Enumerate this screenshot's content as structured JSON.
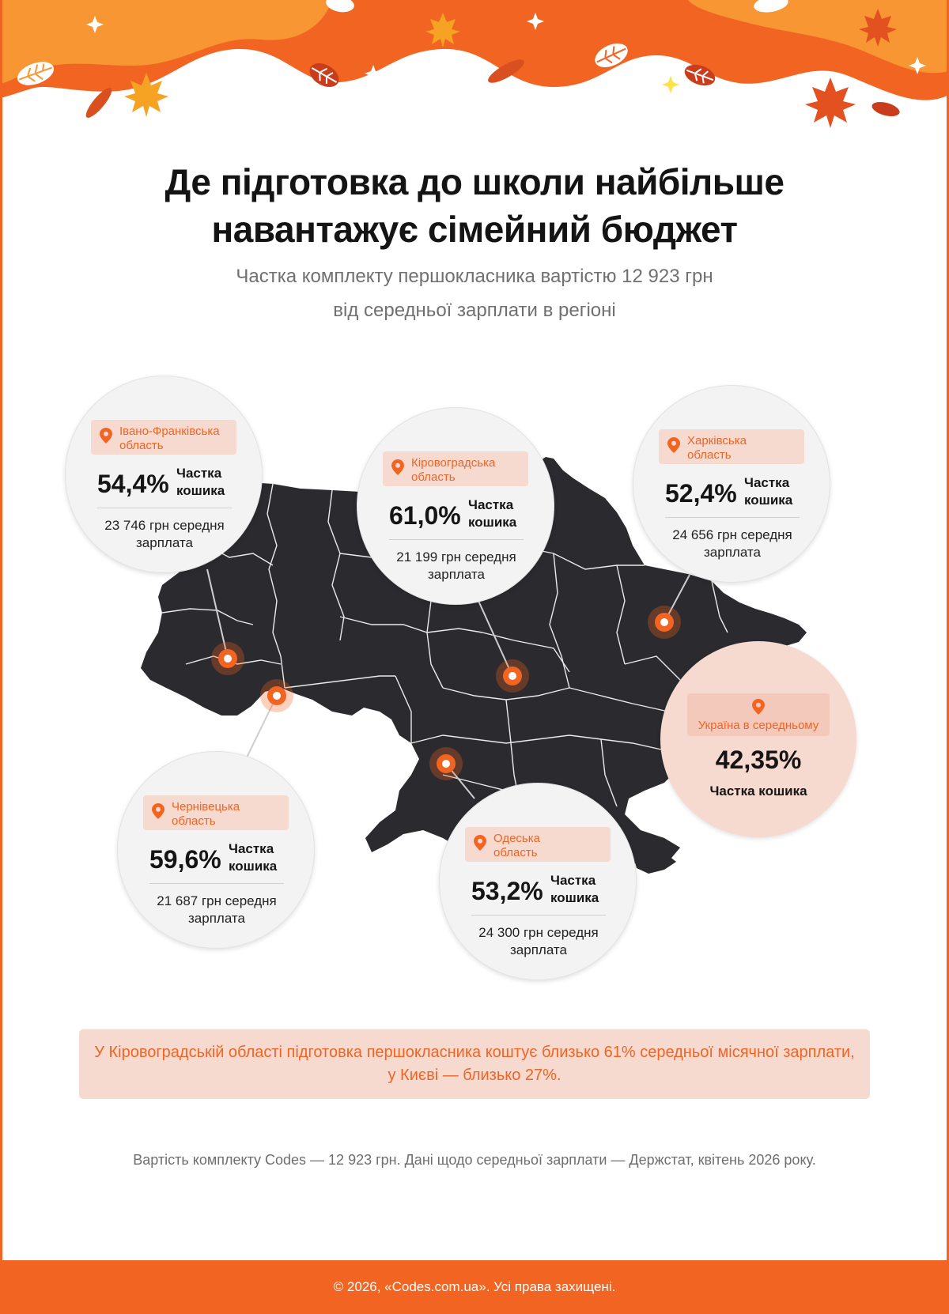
{
  "title": {
    "line1": "Де підготовка до школи найбільше",
    "line2": "навантажує сімейний бюджет"
  },
  "subtitle": {
    "line1": "Частка комплекту першокласника вартістю 12 923 грн",
    "line2": "від середньої зарплати в регіоні"
  },
  "regions": {
    "ivano_frankivsk": {
      "name_line1": "Івано-Франківська",
      "name_line2": "область",
      "share_pct": "54,4%",
      "share_label_line1": "Частка",
      "share_label_line2": "кошика",
      "salary_line1": "23 746 грн середня",
      "salary_line2": "зарплата"
    },
    "kirovohrad": {
      "name_line1": "Кіровоградська",
      "name_line2": "область",
      "share_pct": "61,0%",
      "share_label_line1": "Частка",
      "share_label_line2": "кошика",
      "salary_line1": "21 199 грн середня",
      "salary_line2": "зарплата"
    },
    "kharkiv": {
      "name_line1": "Харківська",
      "name_line2": "область",
      "share_pct": "52,4%",
      "share_label_line1": "Частка",
      "share_label_line2": "кошика",
      "salary_line1": "24 656 грн середня",
      "salary_line2": "зарплата"
    },
    "chernivtsi": {
      "name_line1": "Чернівецька",
      "name_line2": "область",
      "share_pct": "59,6%",
      "share_label_line1": "Частка",
      "share_label_line2": "кошика",
      "salary_line1": "21 687 грн середня",
      "salary_line2": "зарплата"
    },
    "odesa": {
      "name_line1": "Одеська",
      "name_line2": "область",
      "share_pct": "53,2%",
      "share_label_line1": "Частка",
      "share_label_line2": "кошика",
      "salary_line1": "24 300 грн середня",
      "salary_line2": "зарплата"
    }
  },
  "average": {
    "label": "Україна в середньому",
    "share_pct": "42,35%",
    "share_label": "Частка кошика"
  },
  "note": {
    "line1": "У Кіровоградській області підготовка першокласника коштує близько 61% середньої місячної зарплати,",
    "line2": "у Києві — близько 27%."
  },
  "source": "Вартість комплекту Codes — 12 923 грн. Дані щодо середньої зарплати — Держстат, квітень 2026 року.",
  "footer": "© 2026, «Codes.com.ua». Усі права захищені.",
  "colors": {
    "accent": "#f26422",
    "map": "#2b2a2e",
    "tag_bg": "#f6d9cf"
  },
  "icons": [
    "map-pin-icon",
    "autumn-leaf-icon",
    "sparkle-icon"
  ]
}
